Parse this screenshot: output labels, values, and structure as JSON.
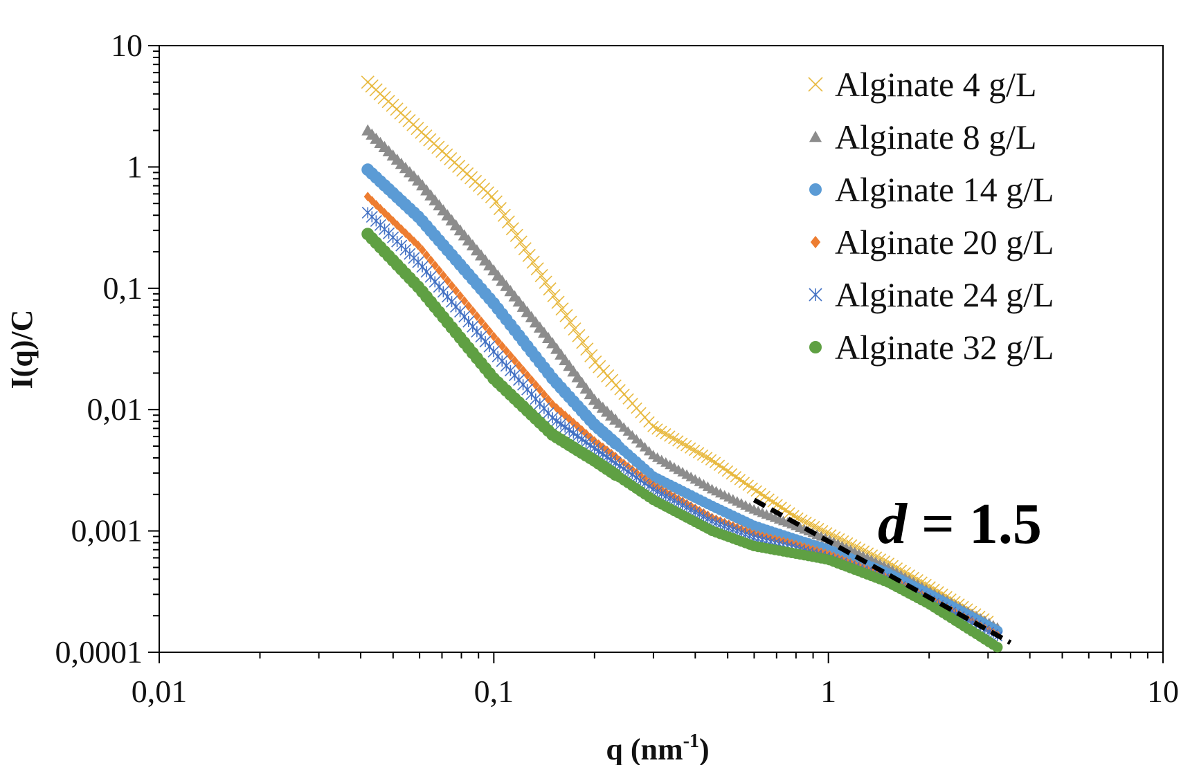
{
  "chart_data": {
    "type": "scatter",
    "xscale": "log",
    "yscale": "log",
    "xlim": [
      0.01,
      10
    ],
    "ylim": [
      0.0001,
      10
    ],
    "xlabel": "q (nm",
    "xlabel_sup": "-1",
    "xlabel_close": ")",
    "ylabel": "I(q)/C",
    "x_tick_labels": [
      "0,01",
      "0,1",
      "1",
      "10"
    ],
    "y_tick_labels": [
      "0,0001",
      "0,001",
      "0,01",
      "0,1",
      "1",
      "10"
    ],
    "grid": false,
    "legend_position": "top-right",
    "series": [
      {
        "name": "Alginate 4 g/L",
        "marker": "x",
        "color": "#E8B93F",
        "points": [
          [
            0.042,
            5.0
          ],
          [
            0.06,
            2.0
          ],
          [
            0.1,
            0.55
          ],
          [
            0.15,
            0.09
          ],
          [
            0.2,
            0.025
          ],
          [
            0.3,
            0.0072
          ],
          [
            0.45,
            0.0038
          ],
          [
            0.6,
            0.0022
          ],
          [
            0.8,
            0.0013
          ],
          [
            1.0,
            0.00095
          ],
          [
            1.5,
            0.00055
          ],
          [
            2.0,
            0.00035
          ],
          [
            3.0,
            0.00018
          ]
        ]
      },
      {
        "name": "Alginate 8 g/L",
        "marker": "triangle",
        "color": "#8C8C8C",
        "points": [
          [
            0.042,
            2.0
          ],
          [
            0.06,
            0.75
          ],
          [
            0.1,
            0.14
          ],
          [
            0.15,
            0.035
          ],
          [
            0.2,
            0.012
          ],
          [
            0.3,
            0.0042
          ],
          [
            0.45,
            0.0022
          ],
          [
            0.6,
            0.0015
          ],
          [
            0.8,
            0.0011
          ],
          [
            1.0,
            0.00085
          ],
          [
            1.5,
            0.0005
          ],
          [
            2.0,
            0.00032
          ],
          [
            3.2,
            0.00016
          ]
        ]
      },
      {
        "name": "Alginate 14 g/L",
        "marker": "circle",
        "color": "#5B9BD5",
        "points": [
          [
            0.042,
            0.95
          ],
          [
            0.06,
            0.38
          ],
          [
            0.1,
            0.075
          ],
          [
            0.15,
            0.018
          ],
          [
            0.2,
            0.0075
          ],
          [
            0.3,
            0.0028
          ],
          [
            0.45,
            0.0016
          ],
          [
            0.6,
            0.0011
          ],
          [
            0.8,
            0.00085
          ],
          [
            1.0,
            0.0007
          ],
          [
            1.5,
            0.00045
          ],
          [
            2.0,
            0.0003
          ],
          [
            3.2,
            0.00015
          ]
        ]
      },
      {
        "name": "Alginate 20 g/L",
        "marker": "diamond",
        "color": "#ED7D31",
        "points": [
          [
            0.042,
            0.57
          ],
          [
            0.06,
            0.22
          ],
          [
            0.1,
            0.04
          ],
          [
            0.15,
            0.011
          ],
          [
            0.2,
            0.0055
          ],
          [
            0.3,
            0.0024
          ],
          [
            0.45,
            0.0013
          ],
          [
            0.6,
            0.00095
          ],
          [
            0.8,
            0.00078
          ],
          [
            1.0,
            0.00065
          ],
          [
            1.5,
            0.00042
          ],
          [
            2.0,
            0.00028
          ],
          [
            3.2,
            0.00014
          ]
        ]
      },
      {
        "name": "Alginate 24 g/L",
        "marker": "asterisk",
        "color": "#4472C4",
        "points": [
          [
            0.042,
            0.42
          ],
          [
            0.06,
            0.16
          ],
          [
            0.1,
            0.03
          ],
          [
            0.15,
            0.0085
          ],
          [
            0.2,
            0.0048
          ],
          [
            0.3,
            0.0022
          ],
          [
            0.45,
            0.0012
          ],
          [
            0.6,
            0.00088
          ],
          [
            0.8,
            0.00072
          ],
          [
            1.0,
            0.0006
          ],
          [
            1.5,
            0.0004
          ],
          [
            2.0,
            0.00027
          ],
          [
            3.2,
            0.000135
          ]
        ]
      },
      {
        "name": "Alginate 32 g/L",
        "marker": "circle",
        "color": "#5FA043",
        "points": [
          [
            0.042,
            0.28
          ],
          [
            0.06,
            0.1
          ],
          [
            0.1,
            0.018
          ],
          [
            0.15,
            0.0062
          ],
          [
            0.2,
            0.0038
          ],
          [
            0.3,
            0.0018
          ],
          [
            0.45,
            0.001
          ],
          [
            0.6,
            0.00075
          ],
          [
            0.8,
            0.00065
          ],
          [
            1.0,
            0.00058
          ],
          [
            1.5,
            0.00038
          ],
          [
            2.0,
            0.00025
          ],
          [
            3.2,
            0.00011
          ]
        ]
      }
    ],
    "fit_line": {
      "from": [
        0.6,
        0.0018
      ],
      "to": [
        3.5,
        0.00012
      ],
      "style": "dashed",
      "color": "#000000"
    },
    "annotation": {
      "italic_part": "d",
      "rest": " = 1.5"
    }
  }
}
